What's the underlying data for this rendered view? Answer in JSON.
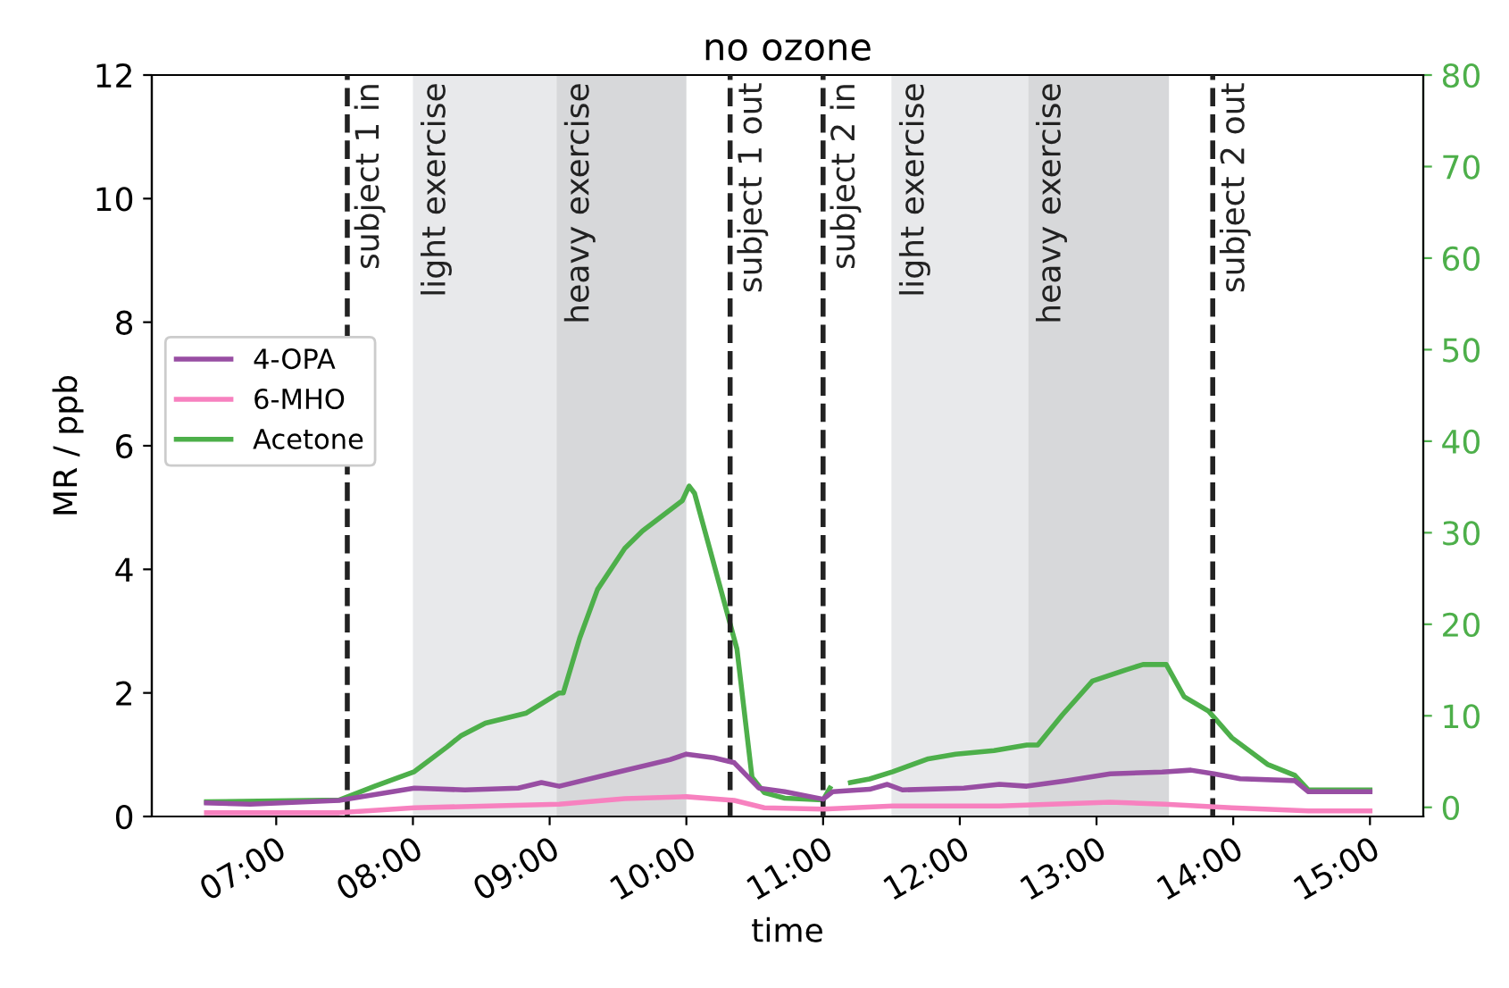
{
  "chart_data": {
    "type": "line",
    "title": "no ozone",
    "xlabel": "time",
    "ylabel": "MR / ppb",
    "xlim": [
      6.09,
      15.39
    ],
    "xticks": [
      {
        "value": 7,
        "label": "07:00"
      },
      {
        "value": 8,
        "label": "08:00"
      },
      {
        "value": 9,
        "label": "09:00"
      },
      {
        "value": 10,
        "label": "10:00"
      },
      {
        "value": 11,
        "label": "11:00"
      },
      {
        "value": 12,
        "label": "12:00"
      },
      {
        "value": 13,
        "label": "13:00"
      },
      {
        "value": 14,
        "label": "14:00"
      },
      {
        "value": 15,
        "label": "15:00"
      }
    ],
    "ylim": [
      0,
      12
    ],
    "yticks": [
      0,
      2,
      4,
      6,
      8,
      10,
      12
    ],
    "y2lim": [
      -1,
      80
    ],
    "y2ticks": [
      0,
      10,
      20,
      30,
      40,
      50,
      60,
      70,
      80
    ],
    "grid": false,
    "legend": "left",
    "line_style": "solid",
    "marker": "none",
    "series": [
      {
        "name": "4-OPA",
        "color": "#984ea3",
        "x": [
          6.49,
          6.81,
          7.46,
          7.79,
          8.01,
          8.38,
          8.77,
          8.94,
          9.07,
          9.5,
          9.88,
          10.0,
          10.2,
          10.35,
          10.53,
          10.72,
          11.0,
          11.07,
          11.34,
          11.47,
          11.58,
          12.03,
          12.29,
          12.49,
          12.78,
          13.1,
          13.48,
          13.69,
          13.86,
          14.05,
          14.45,
          14.55,
          15.0
        ],
        "values": [
          0.22,
          0.2,
          0.26,
          0.38,
          0.46,
          0.43,
          0.46,
          0.55,
          0.49,
          0.72,
          0.92,
          1.01,
          0.95,
          0.87,
          0.46,
          0.4,
          0.28,
          0.4,
          0.44,
          0.52,
          0.43,
          0.46,
          0.52,
          0.49,
          0.58,
          0.69,
          0.72,
          0.75,
          0.69,
          0.61,
          0.58,
          0.4,
          0.4
        ]
      },
      {
        "name": "6-MHO",
        "color": "#f781bf",
        "x": [
          6.49,
          7.46,
          8.01,
          9.07,
          9.55,
          10.0,
          10.35,
          10.57,
          11.0,
          11.51,
          12.29,
          13.1,
          13.5,
          13.99,
          14.55,
          15.0
        ],
        "values": [
          0.06,
          0.06,
          0.14,
          0.2,
          0.29,
          0.32,
          0.26,
          0.14,
          0.12,
          0.17,
          0.17,
          0.23,
          0.2,
          0.14,
          0.09,
          0.09
        ]
      },
      {
        "name": "Acetone",
        "color": "#4daf4a",
        "axis": "y2",
        "x": [
          6.49,
          7.46,
          7.72,
          8.01,
          8.25,
          8.35,
          8.53,
          8.83,
          9.07,
          9.1,
          9.22,
          9.35,
          9.55,
          9.68,
          9.97,
          10.02,
          10.06,
          10.17,
          10.37,
          10.48,
          10.57,
          10.72,
          11.0,
          11.05,
          11.08,
          11.2,
          11.34,
          11.51,
          11.77,
          11.97,
          12.25,
          12.49,
          12.57,
          12.75,
          12.97,
          13.21,
          13.34,
          13.51,
          13.64,
          13.82,
          13.99,
          14.25,
          14.45,
          14.55,
          15.0
        ],
        "values": [
          0.6,
          0.8,
          2.3,
          3.9,
          6.6,
          7.8,
          9.2,
          10.3,
          12.5,
          12.5,
          18.5,
          23.8,
          28.3,
          30.2,
          33.5,
          35.1,
          34.3,
          28.3,
          17.3,
          3.3,
          1.6,
          1.0,
          0.8,
          2.1,
          null,
          2.7,
          3.1,
          3.9,
          5.3,
          5.8,
          6.2,
          6.8,
          6.8,
          10.1,
          13.8,
          15.0,
          15.6,
          15.6,
          12.1,
          10.5,
          7.6,
          4.7,
          3.5,
          1.9,
          1.9
        ]
      }
    ],
    "bands": [
      {
        "axis": "x",
        "from": 8.0,
        "to": 9.05,
        "label": "light exercise",
        "color": "#e8e9eb"
      },
      {
        "axis": "x",
        "from": 9.05,
        "to": 10.0,
        "label": "heavy exercise",
        "color": "#d7d8da"
      },
      {
        "axis": "x",
        "from": 11.5,
        "to": 12.5,
        "label": "light exercise",
        "color": "#e8e9eb"
      },
      {
        "axis": "x",
        "from": 12.5,
        "to": 13.53,
        "label": "heavy exercise",
        "color": "#d7d8da"
      }
    ],
    "ref_lines": [
      {
        "axis": "x",
        "value": 7.52,
        "label": "subject 1 in",
        "color": "#222222",
        "line_style": "dashed"
      },
      {
        "axis": "x",
        "value": 10.32,
        "label": "subject 1 out",
        "color": "#222222",
        "line_style": "dashed"
      },
      {
        "axis": "x",
        "value": 11.0,
        "label": "subject 2 in",
        "color": "#222222",
        "line_style": "dashed"
      },
      {
        "axis": "x",
        "value": 13.85,
        "label": "subject 2 out",
        "color": "#222222",
        "line_style": "dashed"
      }
    ]
  }
}
